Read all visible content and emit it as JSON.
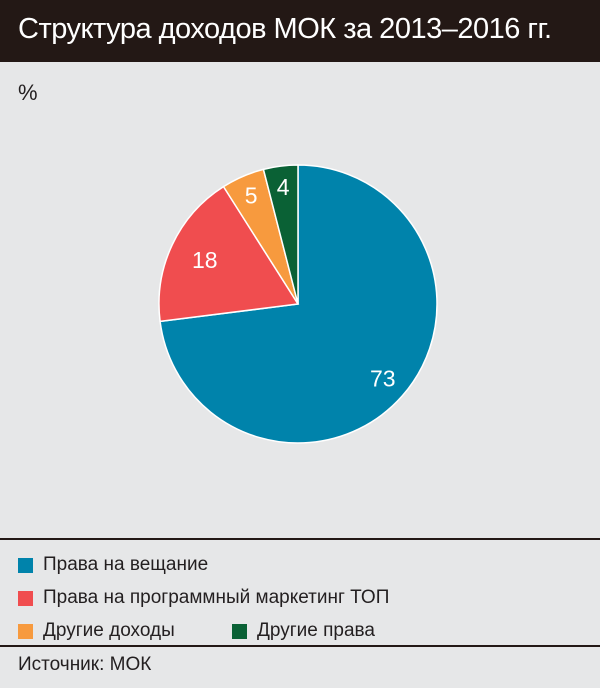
{
  "header": {
    "title": "Структура доходов МОК за 2013–2016 гг."
  },
  "chart_data": {
    "type": "pie",
    "unit_label": "%",
    "slices": [
      {
        "label": "Права на вещание",
        "value": 73,
        "color": "#0083ab"
      },
      {
        "label": "Права на программный маркетинг ТОП",
        "value": 18,
        "color": "#f04d4f"
      },
      {
        "label": "Другие доходы",
        "value": 5,
        "color": "#f79a3e"
      },
      {
        "label": "Другие права",
        "value": 4,
        "color": "#0a6135"
      }
    ]
  },
  "footer": {
    "source": "Источник: МОК"
  }
}
